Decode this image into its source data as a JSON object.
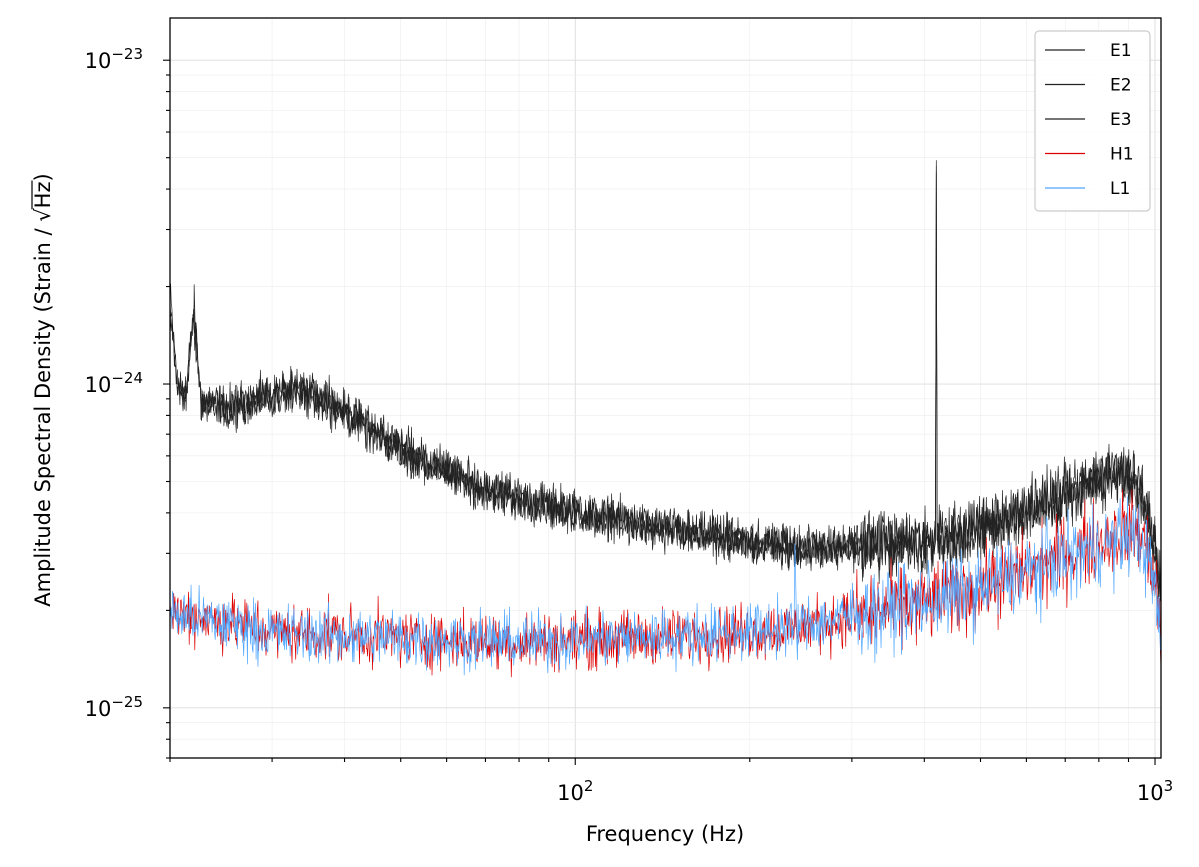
{
  "chart_data": {
    "type": "line",
    "title": "",
    "xlabel": "Frequency (Hz)",
    "ylabel_prefix": "Amplitude Spectral Density (Strain / ",
    "ylabel_root": "Hz",
    "ylabel_suffix": ")",
    "xscale": "log",
    "yscale": "log",
    "xlim": [
      20,
      1024
    ],
    "ylim": [
      7e-26,
      1.35e-23
    ],
    "x_tick_labels": [
      {
        "base": "10",
        "exp": "2",
        "value": 100
      },
      {
        "base": "10",
        "exp": "3",
        "value": 1000
      }
    ],
    "y_tick_labels": [
      {
        "base": "10",
        "exp": "−23",
        "value": 1e-23
      },
      {
        "base": "10",
        "exp": "−24",
        "value": 1e-24
      },
      {
        "base": "10",
        "exp": "−25",
        "value": 1e-25
      }
    ],
    "grid": true,
    "legend_position": "top-right",
    "series": [
      {
        "name": "E1",
        "color": "#222222",
        "noise": 0.055,
        "points": [
          [
            20,
            1.9e-24
          ],
          [
            20.6,
            1e-24
          ],
          [
            21.3,
            9.2e-25
          ],
          [
            22.0,
            1.75e-24
          ],
          [
            22.6,
            9e-25
          ],
          [
            25,
            8.6e-25
          ],
          [
            28,
            9e-25
          ],
          [
            33,
            9.6e-25
          ],
          [
            38,
            8.7e-25
          ],
          [
            45,
            7.2e-25
          ],
          [
            55,
            5.8e-25
          ],
          [
            70,
            4.75e-25
          ],
          [
            100,
            4.05e-25
          ],
          [
            150,
            3.55e-25
          ],
          [
            200,
            3.25e-25
          ],
          [
            250,
            3.1e-25
          ],
          [
            300,
            3.15e-25
          ],
          [
            350,
            3.25e-25
          ],
          [
            418,
            3.25e-25
          ],
          [
            419.5,
            4.9e-24
          ],
          [
            421,
            3.3e-25
          ],
          [
            500,
            3.6e-25
          ],
          [
            600,
            4.1e-25
          ],
          [
            700,
            4.6e-25
          ],
          [
            800,
            5.1e-25
          ],
          [
            880,
            5.4e-25
          ],
          [
            930,
            5e-25
          ],
          [
            970,
            4e-25
          ],
          [
            1000,
            3e-25
          ],
          [
            1024,
            2.3e-25
          ]
        ]
      },
      {
        "name": "E2",
        "color": "#222222",
        "noise": 0.055,
        "points": [
          [
            20,
            1.8e-24
          ],
          [
            20.6,
            9.8e-25
          ],
          [
            21.3,
            9e-25
          ],
          [
            22.0,
            1.7e-24
          ],
          [
            22.6,
            8.8e-25
          ],
          [
            25,
            8.3e-25
          ],
          [
            28,
            8.9e-25
          ],
          [
            33,
            9.5e-25
          ],
          [
            38,
            8.6e-25
          ],
          [
            45,
            7e-25
          ],
          [
            55,
            5.7e-25
          ],
          [
            70,
            4.7e-25
          ],
          [
            100,
            4e-25
          ],
          [
            150,
            3.5e-25
          ],
          [
            200,
            3.2e-25
          ],
          [
            250,
            3.08e-25
          ],
          [
            300,
            3.12e-25
          ],
          [
            350,
            3.22e-25
          ],
          [
            418,
            3.22e-25
          ],
          [
            419.5,
            4.5e-24
          ],
          [
            421,
            3.28e-25
          ],
          [
            500,
            3.55e-25
          ],
          [
            600,
            4.05e-25
          ],
          [
            700,
            4.55e-25
          ],
          [
            800,
            5.05e-25
          ],
          [
            880,
            5.35e-25
          ],
          [
            930,
            4.95e-25
          ],
          [
            970,
            3.95e-25
          ],
          [
            1000,
            2.95e-25
          ],
          [
            1024,
            2.25e-25
          ]
        ]
      },
      {
        "name": "E3",
        "color": "#222222",
        "noise": 0.055,
        "points": [
          [
            20,
            1.85e-24
          ],
          [
            20.6,
            9.6e-25
          ],
          [
            21.3,
            8.9e-25
          ],
          [
            22.0,
            1.6e-24
          ],
          [
            22.6,
            8.7e-25
          ],
          [
            25,
            8.4e-25
          ],
          [
            28,
            9.1e-25
          ],
          [
            33,
            9.7e-25
          ],
          [
            38,
            8.8e-25
          ],
          [
            45,
            7.1e-25
          ],
          [
            55,
            5.75e-25
          ],
          [
            70,
            4.72e-25
          ],
          [
            100,
            4.02e-25
          ],
          [
            150,
            3.52e-25
          ],
          [
            200,
            3.22e-25
          ],
          [
            250,
            3.1e-25
          ],
          [
            300,
            3.14e-25
          ],
          [
            350,
            3.24e-25
          ],
          [
            418,
            3.24e-25
          ],
          [
            419.5,
            4.7e-24
          ],
          [
            421,
            3.3e-25
          ],
          [
            500,
            3.58e-25
          ],
          [
            600,
            4.08e-25
          ],
          [
            700,
            4.58e-25
          ],
          [
            800,
            5.08e-25
          ],
          [
            880,
            5.38e-25
          ],
          [
            930,
            4.98e-25
          ],
          [
            970,
            3.98e-25
          ],
          [
            1000,
            2.98e-25
          ],
          [
            1024,
            2.28e-25
          ]
        ]
      },
      {
        "name": "H1",
        "color": "#dd0000",
        "noise": 0.075,
        "points": [
          [
            20,
            2e-25
          ],
          [
            25,
            1.85e-25
          ],
          [
            30,
            1.72e-25
          ],
          [
            40,
            1.68e-25
          ],
          [
            60,
            1.62e-25
          ],
          [
            80,
            1.6e-25
          ],
          [
            100,
            1.62e-25
          ],
          [
            150,
            1.66e-25
          ],
          [
            200,
            1.72e-25
          ],
          [
            239,
            1.76e-25
          ],
          [
            240,
            1.78e-25
          ],
          [
            300,
            1.9e-25
          ],
          [
            400,
            2.1e-25
          ],
          [
            500,
            2.35e-25
          ],
          [
            600,
            2.65e-25
          ],
          [
            700,
            2.95e-25
          ],
          [
            800,
            3.25e-25
          ],
          [
            900,
            3.55e-25
          ],
          [
            950,
            3.45e-25
          ],
          [
            1000,
            2.5e-25
          ],
          [
            1024,
            1.6e-25
          ]
        ]
      },
      {
        "name": "L1",
        "color": "#4ea6ff",
        "noise": 0.075,
        "points": [
          [
            20,
            1.95e-25
          ],
          [
            25,
            1.82e-25
          ],
          [
            30,
            1.7e-25
          ],
          [
            40,
            1.67e-25
          ],
          [
            60,
            1.62e-25
          ],
          [
            80,
            1.6e-25
          ],
          [
            100,
            1.63e-25
          ],
          [
            150,
            1.67e-25
          ],
          [
            200,
            1.73e-25
          ],
          [
            238.5,
            1.77e-25
          ],
          [
            239.5,
            3.1e-25
          ],
          [
            240.5,
            1.79e-25
          ],
          [
            300,
            1.92e-25
          ],
          [
            400,
            2.12e-25
          ],
          [
            500,
            2.35e-25
          ],
          [
            600,
            2.62e-25
          ],
          [
            700,
            2.9e-25
          ],
          [
            800,
            3.15e-25
          ],
          [
            900,
            3.38e-25
          ],
          [
            950,
            3.3e-25
          ],
          [
            1000,
            2.4e-25
          ],
          [
            1024,
            1.55e-25
          ]
        ]
      }
    ]
  }
}
